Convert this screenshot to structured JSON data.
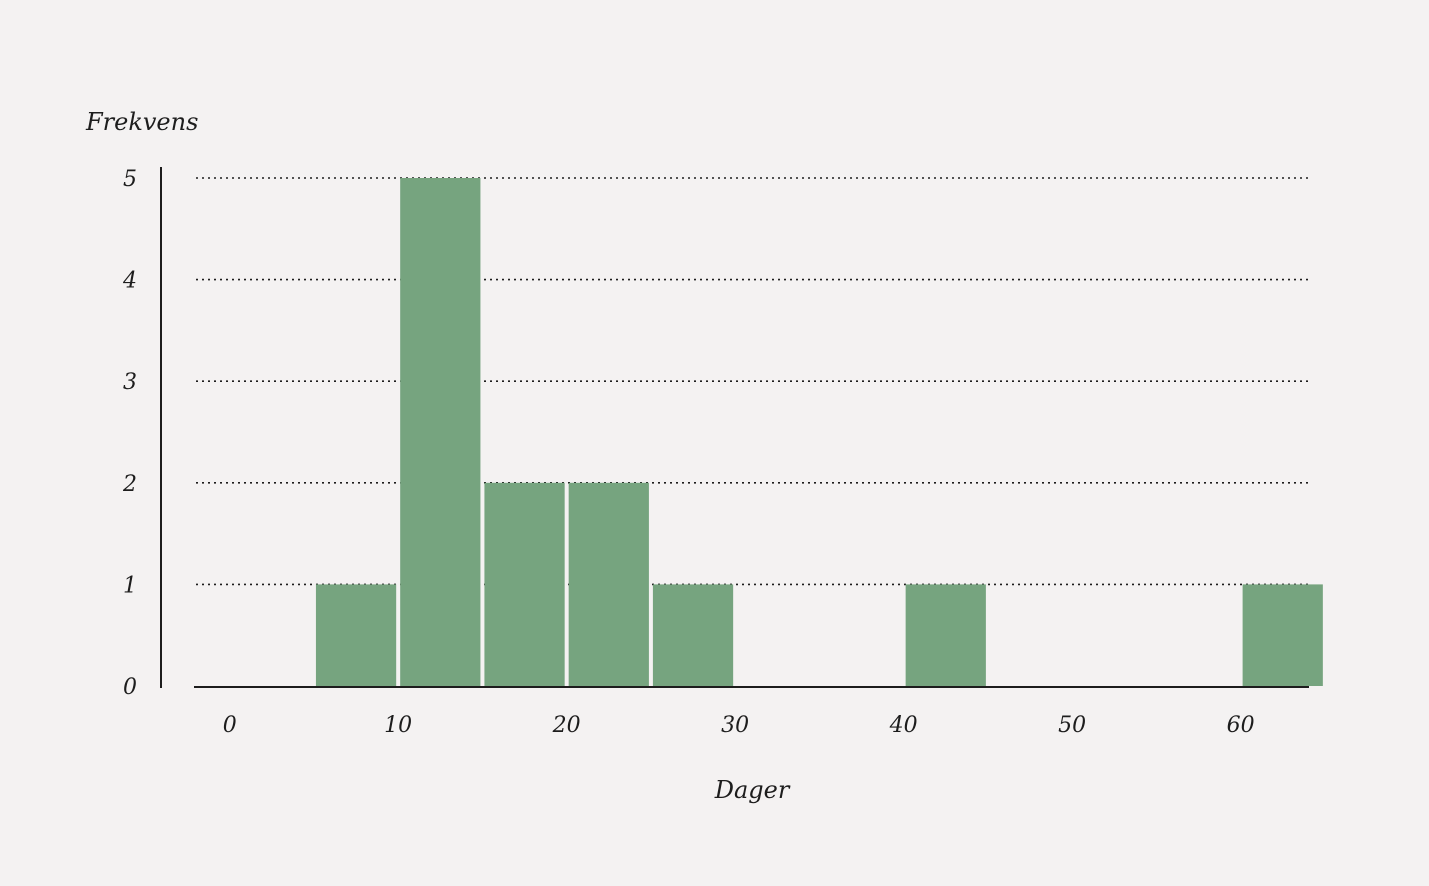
{
  "chart_data": {
    "type": "bar",
    "subtype": "histogram",
    "xlabel": "Dager",
    "ylabel": "Frekvens",
    "bin_width": 5,
    "bins": [
      {
        "start": 0,
        "end": 5,
        "value": 0
      },
      {
        "start": 5,
        "end": 10,
        "value": 1
      },
      {
        "start": 10,
        "end": 15,
        "value": 5
      },
      {
        "start": 15,
        "end": 20,
        "value": 2
      },
      {
        "start": 20,
        "end": 25,
        "value": 2
      },
      {
        "start": 25,
        "end": 30,
        "value": 1
      },
      {
        "start": 30,
        "end": 35,
        "value": 0
      },
      {
        "start": 35,
        "end": 40,
        "value": 0
      },
      {
        "start": 40,
        "end": 45,
        "value": 1
      },
      {
        "start": 45,
        "end": 50,
        "value": 0
      },
      {
        "start": 50,
        "end": 55,
        "value": 0
      },
      {
        "start": 55,
        "end": 60,
        "value": 0
      },
      {
        "start": 60,
        "end": 65,
        "value": 1
      }
    ],
    "x_ticks": [
      "0",
      "10",
      "20",
      "30",
      "40",
      "50",
      "60"
    ],
    "y_ticks": [
      "0",
      "1",
      "2",
      "3",
      "4",
      "5"
    ],
    "xlim": [
      -2,
      64
    ],
    "ylim": [
      0,
      5
    ],
    "grid": "horizontal-dotted",
    "bar_color": "#76a47f",
    "background": "#f4f2f2",
    "text_color": "#1d1d1d"
  }
}
